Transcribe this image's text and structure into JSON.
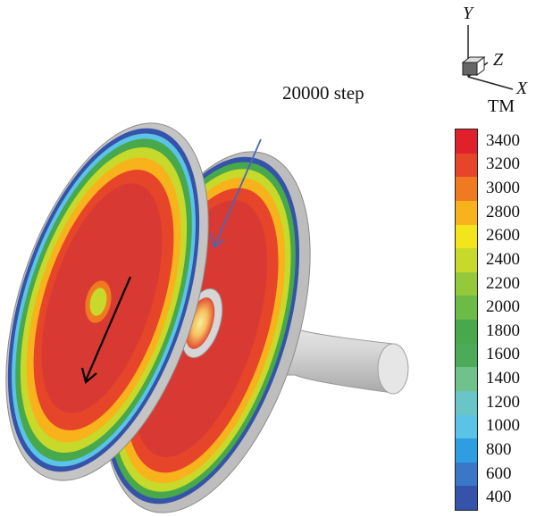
{
  "step_label": "20000 step",
  "axes": {
    "y": "Y",
    "z": "Z",
    "x": "X"
  },
  "legend": {
    "title": "TM",
    "ticks": [
      "3400",
      "3200",
      "3000",
      "2800",
      "2600",
      "2400",
      "2200",
      "2000",
      "1800",
      "1600",
      "1400",
      "1200",
      "1000",
      "800",
      "600",
      "400"
    ],
    "colors": [
      "#e0202a",
      "#e6452a",
      "#f07a20",
      "#f8b21c",
      "#f3e51c",
      "#c7d92a",
      "#95c93c",
      "#6bbb46",
      "#47a84c",
      "#4cab58",
      "#6fc28a",
      "#69c5c6",
      "#5bc2e8",
      "#2f9ee0",
      "#3a77c6",
      "#3553a8"
    ]
  },
  "arrows": {
    "black": "#000000",
    "blue": "#4a66b8"
  }
}
